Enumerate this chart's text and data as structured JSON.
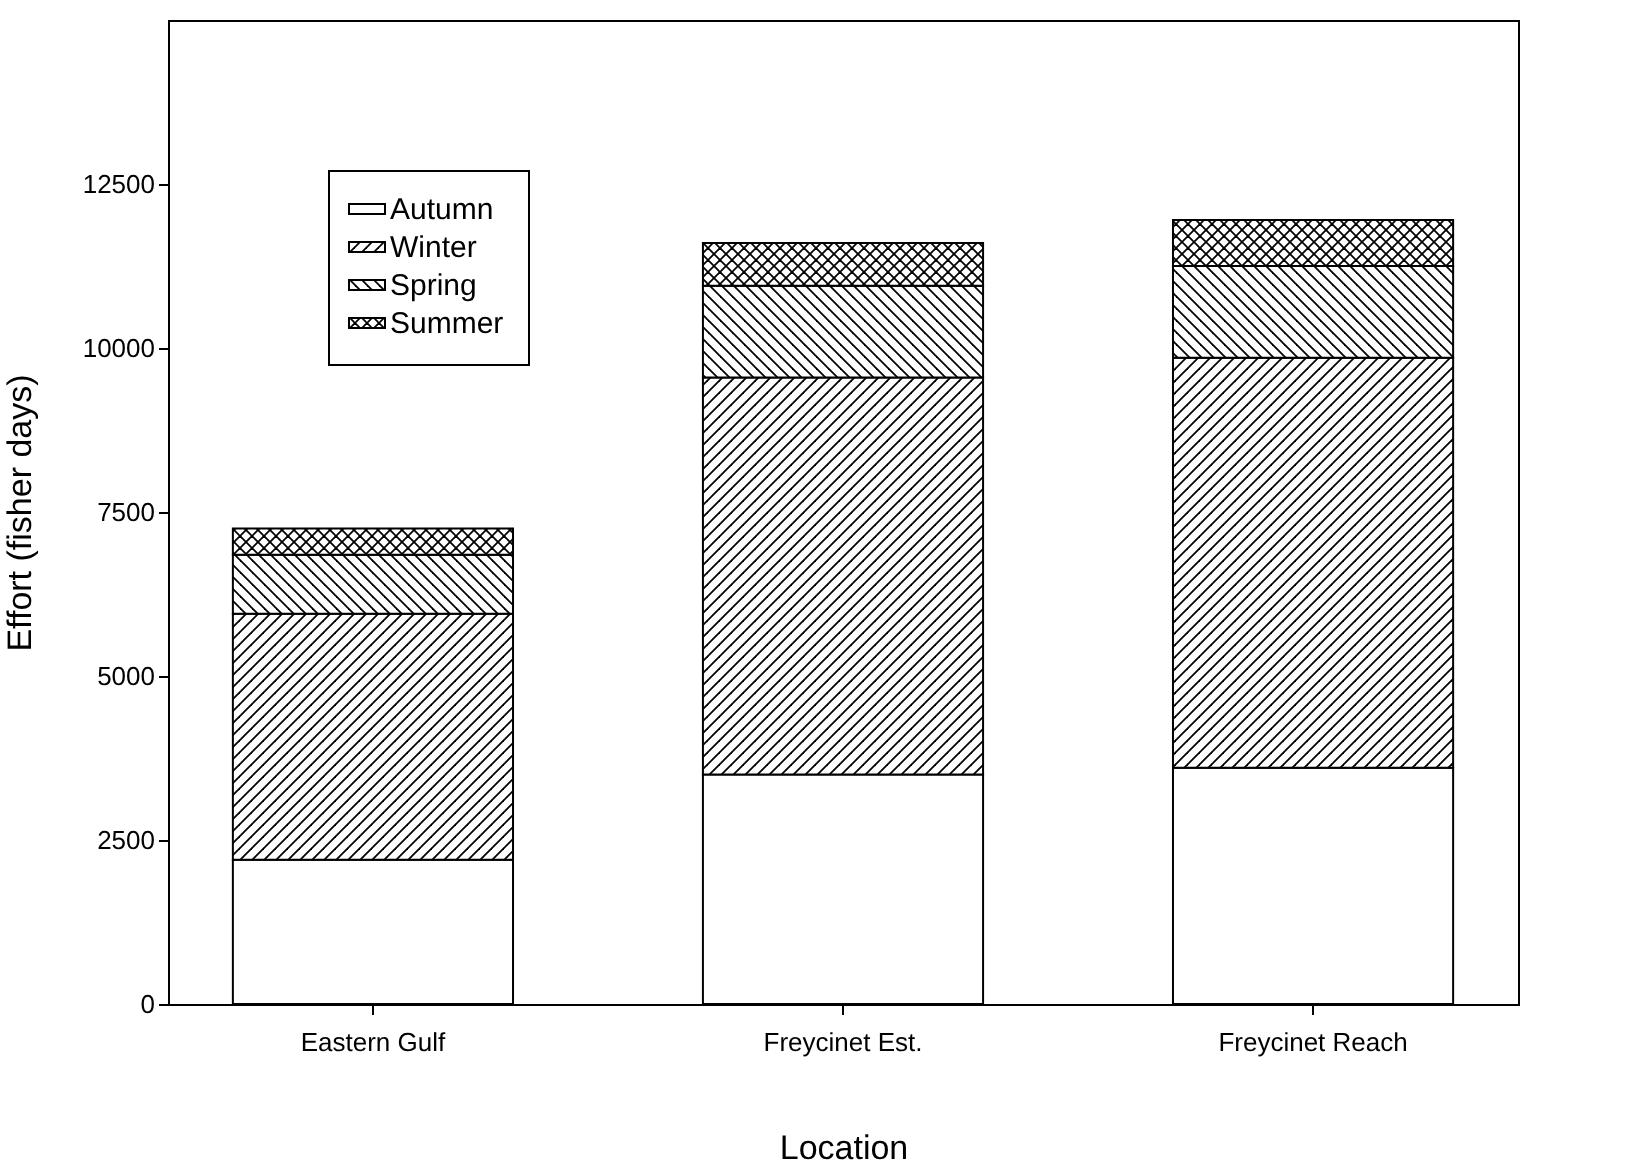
{
  "chart_data": {
    "type": "bar",
    "stacked": true,
    "xlabel": "Location",
    "ylabel": "Effort (fisher days)",
    "categories": [
      "Eastern Gulf",
      "Freycinet Est.",
      "Freycinet Reach"
    ],
    "series": [
      {
        "name": "Autumn",
        "color": "#ffffff",
        "values": [
          2200,
          3500,
          3600
        ]
      },
      {
        "name": "Winter",
        "color": "#000000",
        "values": [
          3750,
          6050,
          6250
        ]
      },
      {
        "name": "Spring",
        "color": "#000000",
        "values": [
          900,
          1400,
          1400
        ]
      },
      {
        "name": "Summer",
        "color": "#000000",
        "values": [
          400,
          650,
          700
        ]
      }
    ],
    "ylim": [
      0,
      15000
    ],
    "yticks": [
      0,
      2500,
      5000,
      7500,
      10000,
      12500
    ],
    "grid": false,
    "legend": "top left"
  }
}
